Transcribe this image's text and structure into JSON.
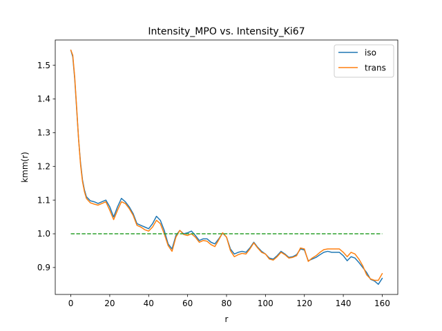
{
  "chart_data": {
    "type": "line",
    "title": "Intensity_MPO vs. Intensity_Ki67",
    "xlabel": "r",
    "ylabel": "kmm(r)",
    "xlim": [
      -8,
      168
    ],
    "ylim": [
      0.82,
      1.575
    ],
    "x_ticks": [
      0,
      20,
      40,
      60,
      80,
      100,
      120,
      140,
      160
    ],
    "y_ticks": [
      0.9,
      1.0,
      1.1,
      1.2,
      1.3,
      1.4,
      1.5
    ],
    "grid": false,
    "legend_position": "top-right",
    "series": [
      {
        "name": "iso",
        "color": "#1f77b4",
        "style": "solid",
        "points": [
          [
            0,
            1.545
          ],
          [
            1,
            1.525
          ],
          [
            2,
            1.46
          ],
          [
            3,
            1.37
          ],
          [
            4,
            1.28
          ],
          [
            5,
            1.21
          ],
          [
            6,
            1.16
          ],
          [
            7,
            1.13
          ],
          [
            8,
            1.11
          ],
          [
            10,
            1.098
          ],
          [
            12,
            1.095
          ],
          [
            14,
            1.09
          ],
          [
            16,
            1.095
          ],
          [
            18,
            1.1
          ],
          [
            20,
            1.08
          ],
          [
            22,
            1.05
          ],
          [
            24,
            1.08
          ],
          [
            26,
            1.105
          ],
          [
            28,
            1.095
          ],
          [
            30,
            1.08
          ],
          [
            32,
            1.06
          ],
          [
            34,
            1.03
          ],
          [
            36,
            1.025
          ],
          [
            38,
            1.02
          ],
          [
            40,
            1.015
          ],
          [
            42,
            1.03
          ],
          [
            44,
            1.052
          ],
          [
            46,
            1.04
          ],
          [
            48,
            1.01
          ],
          [
            50,
            0.97
          ],
          [
            52,
            0.955
          ],
          [
            54,
            0.995
          ],
          [
            56,
            1.01
          ],
          [
            58,
            1.0
          ],
          [
            60,
            1.003
          ],
          [
            62,
            1.008
          ],
          [
            64,
            0.995
          ],
          [
            66,
            0.98
          ],
          [
            68,
            0.985
          ],
          [
            70,
            0.985
          ],
          [
            72,
            0.975
          ],
          [
            74,
            0.97
          ],
          [
            76,
            0.985
          ],
          [
            78,
            1.002
          ],
          [
            80,
            0.99
          ],
          [
            82,
            0.955
          ],
          [
            84,
            0.94
          ],
          [
            86,
            0.945
          ],
          [
            88,
            0.948
          ],
          [
            90,
            0.945
          ],
          [
            92,
            0.958
          ],
          [
            94,
            0.975
          ],
          [
            96,
            0.96
          ],
          [
            98,
            0.948
          ],
          [
            100,
            0.94
          ],
          [
            102,
            0.928
          ],
          [
            104,
            0.925
          ],
          [
            106,
            0.935
          ],
          [
            108,
            0.948
          ],
          [
            110,
            0.94
          ],
          [
            112,
            0.93
          ],
          [
            114,
            0.932
          ],
          [
            116,
            0.938
          ],
          [
            118,
            0.955
          ],
          [
            120,
            0.952
          ],
          [
            122,
            0.92
          ],
          [
            124,
            0.925
          ],
          [
            126,
            0.93
          ],
          [
            128,
            0.938
          ],
          [
            130,
            0.945
          ],
          [
            132,
            0.948
          ],
          [
            134,
            0.945
          ],
          [
            136,
            0.945
          ],
          [
            138,
            0.945
          ],
          [
            140,
            0.935
          ],
          [
            142,
            0.92
          ],
          [
            144,
            0.932
          ],
          [
            146,
            0.928
          ],
          [
            148,
            0.915
          ],
          [
            150,
            0.9
          ],
          [
            152,
            0.885
          ],
          [
            154,
            0.865
          ],
          [
            156,
            0.86
          ],
          [
            158,
            0.85
          ],
          [
            160,
            0.868
          ]
        ]
      },
      {
        "name": "trans",
        "color": "#ff7f0e",
        "style": "solid",
        "points": [
          [
            0,
            1.545
          ],
          [
            1,
            1.53
          ],
          [
            2,
            1.465
          ],
          [
            3,
            1.375
          ],
          [
            4,
            1.28
          ],
          [
            5,
            1.205
          ],
          [
            6,
            1.155
          ],
          [
            7,
            1.125
          ],
          [
            8,
            1.105
          ],
          [
            10,
            1.092
          ],
          [
            12,
            1.088
          ],
          [
            14,
            1.085
          ],
          [
            16,
            1.09
          ],
          [
            18,
            1.095
          ],
          [
            20,
            1.07
          ],
          [
            22,
            1.042
          ],
          [
            24,
            1.07
          ],
          [
            26,
            1.095
          ],
          [
            28,
            1.09
          ],
          [
            30,
            1.075
          ],
          [
            32,
            1.055
          ],
          [
            34,
            1.025
          ],
          [
            36,
            1.02
          ],
          [
            38,
            1.012
          ],
          [
            40,
            1.008
          ],
          [
            42,
            1.02
          ],
          [
            44,
            1.04
          ],
          [
            46,
            1.03
          ],
          [
            48,
            1.0
          ],
          [
            50,
            0.965
          ],
          [
            52,
            0.948
          ],
          [
            54,
            0.99
          ],
          [
            56,
            1.01
          ],
          [
            58,
            0.998
          ],
          [
            60,
            0.995
          ],
          [
            62,
            1.0
          ],
          [
            64,
            0.99
          ],
          [
            66,
            0.975
          ],
          [
            68,
            0.98
          ],
          [
            70,
            0.978
          ],
          [
            72,
            0.968
          ],
          [
            74,
            0.962
          ],
          [
            76,
            0.982
          ],
          [
            78,
            1.003
          ],
          [
            80,
            0.99
          ],
          [
            82,
            0.95
          ],
          [
            84,
            0.932
          ],
          [
            86,
            0.938
          ],
          [
            88,
            0.942
          ],
          [
            90,
            0.94
          ],
          [
            92,
            0.955
          ],
          [
            94,
            0.973
          ],
          [
            96,
            0.958
          ],
          [
            98,
            0.945
          ],
          [
            100,
            0.94
          ],
          [
            102,
            0.925
          ],
          [
            104,
            0.922
          ],
          [
            106,
            0.932
          ],
          [
            108,
            0.945
          ],
          [
            110,
            0.938
          ],
          [
            112,
            0.928
          ],
          [
            114,
            0.93
          ],
          [
            116,
            0.935
          ],
          [
            118,
            0.958
          ],
          [
            120,
            0.955
          ],
          [
            122,
            0.918
          ],
          [
            124,
            0.928
          ],
          [
            126,
            0.935
          ],
          [
            128,
            0.945
          ],
          [
            130,
            0.953
          ],
          [
            132,
            0.955
          ],
          [
            134,
            0.955
          ],
          [
            136,
            0.955
          ],
          [
            138,
            0.955
          ],
          [
            140,
            0.945
          ],
          [
            142,
            0.932
          ],
          [
            144,
            0.945
          ],
          [
            146,
            0.94
          ],
          [
            148,
            0.925
          ],
          [
            150,
            0.905
          ],
          [
            152,
            0.878
          ],
          [
            154,
            0.866
          ],
          [
            156,
            0.862
          ],
          [
            158,
            0.862
          ],
          [
            160,
            0.882
          ]
        ]
      },
      {
        "name": "",
        "color": "#2ca02c",
        "style": "dashed",
        "points": [
          [
            0,
            1.0
          ],
          [
            160,
            1.0
          ]
        ]
      }
    ]
  }
}
